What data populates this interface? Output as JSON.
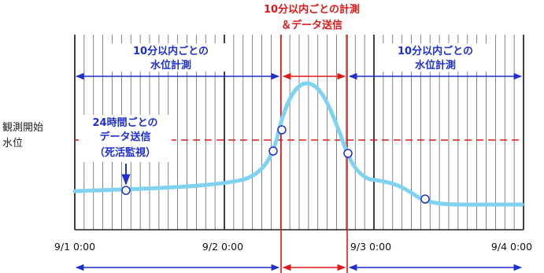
{
  "top_center": {
    "line1": "10分以内ごとの計測",
    "line2": "＆データ送信"
  },
  "left_period": {
    "line1": "10分以内ごとの",
    "line2": "水位計測"
  },
  "right_period": {
    "line1": "10分以内ごとの",
    "line2": "水位計測"
  },
  "start_level": {
    "line1": "観測開始",
    "line2": "水位"
  },
  "daily_send": {
    "line1": "24時間ごとの",
    "line2": "データ送信",
    "line3": "（死活監視）"
  },
  "x_ticks": [
    "9/1 0:00",
    "9/2 0:00",
    "9/3 0:00",
    "9/4 0:00"
  ],
  "colors": {
    "blue": "#1f2fd0",
    "red": "#e01818",
    "curve": "#7fd3f0",
    "grid": "#555555"
  }
}
